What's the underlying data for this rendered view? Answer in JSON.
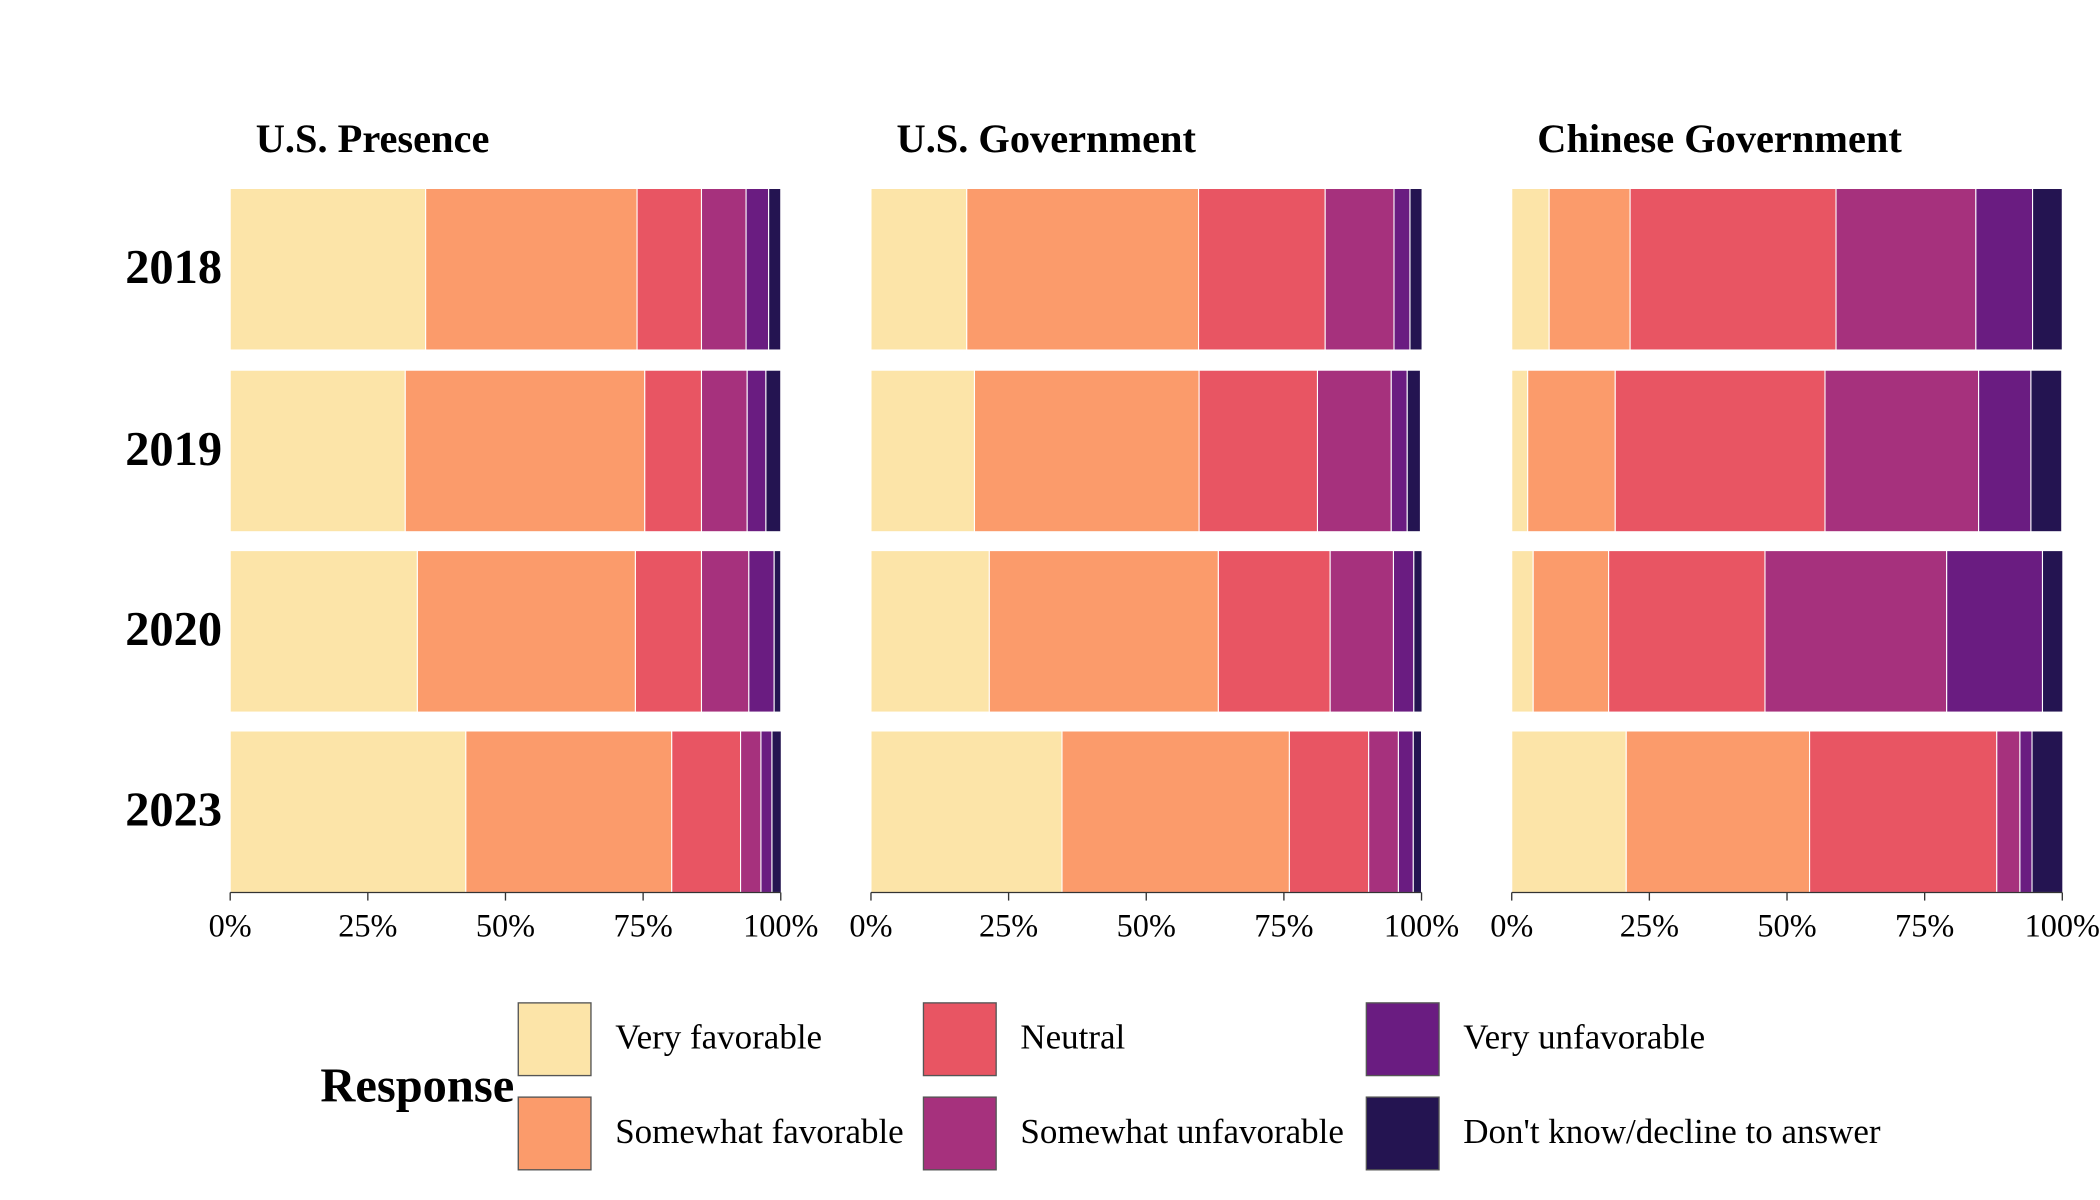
{
  "chart_data": [
    {
      "type": "bar",
      "orientation": "horizontal",
      "stacked": true,
      "title": "U.S. Presence",
      "categories": [
        "2018",
        "2019",
        "2020",
        "2023"
      ],
      "series": [
        {
          "name": "Very favorable",
          "color": "#fce4a8",
          "values": [
            35.5,
            31.8,
            34.0,
            42.8
          ]
        },
        {
          "name": "Somewhat favorable",
          "color": "#fb9b6b",
          "values": [
            38.4,
            43.5,
            39.6,
            37.4
          ]
        },
        {
          "name": "Neutral",
          "color": "#e85563",
          "values": [
            11.7,
            10.3,
            12.0,
            12.5
          ]
        },
        {
          "name": "Somewhat unfavorable",
          "color": "#a6317d",
          "values": [
            8.1,
            8.3,
            8.6,
            3.7
          ]
        },
        {
          "name": "Very unfavorable",
          "color": "#6a1c81",
          "values": [
            4.1,
            3.4,
            4.6,
            2.0
          ]
        },
        {
          "name": "Don't know/decline to answer",
          "color": "#241451",
          "values": [
            2.2,
            2.7,
            1.2,
            1.7
          ]
        }
      ],
      "xlim": [
        0,
        100
      ],
      "xticks": [
        {
          "value": 0,
          "label": "0%"
        },
        {
          "value": 25,
          "label": "25%"
        },
        {
          "value": 50,
          "label": "50%"
        },
        {
          "value": 75,
          "label": "75%"
        },
        {
          "value": 100,
          "label": "100%"
        }
      ]
    },
    {
      "type": "bar",
      "orientation": "horizontal",
      "stacked": true,
      "title": "U.S. Government",
      "series": [
        {
          "name": "Very favorable",
          "color": "#fce4a8",
          "values": [
            17.4,
            18.8,
            21.5,
            34.7
          ]
        },
        {
          "name": "Somewhat favorable",
          "color": "#fb9b6b",
          "values": [
            42.1,
            40.8,
            41.6,
            41.3
          ]
        },
        {
          "name": "Neutral",
          "color": "#e85563",
          "values": [
            23.0,
            21.5,
            20.3,
            14.4
          ]
        },
        {
          "name": "Somewhat unfavorable",
          "color": "#a6317d",
          "values": [
            12.5,
            13.4,
            11.5,
            5.4
          ]
        },
        {
          "name": "Very unfavorable",
          "color": "#6a1c81",
          "values": [
            2.9,
            2.9,
            3.7,
            2.7
          ]
        },
        {
          "name": "Don't know/decline to answer",
          "color": "#241451",
          "values": [
            2.2,
            2.4,
            1.5,
            1.5
          ]
        }
      ],
      "xlim": [
        0,
        100
      ],
      "xticks": [
        {
          "value": 0,
          "label": "0%"
        },
        {
          "value": 25,
          "label": "25%"
        },
        {
          "value": 50,
          "label": "50%"
        },
        {
          "value": 75,
          "label": "75%"
        },
        {
          "value": 100,
          "label": "100%"
        }
      ]
    },
    {
      "type": "bar",
      "orientation": "horizontal",
      "stacked": true,
      "title": "Chinese Government",
      "series": [
        {
          "name": "Very favorable",
          "color": "#fce4a8",
          "values": [
            6.8,
            2.9,
            3.9,
            20.8
          ]
        },
        {
          "name": "Somewhat favorable",
          "color": "#fb9b6b",
          "values": [
            14.7,
            15.9,
            13.7,
            33.3
          ]
        },
        {
          "name": "Neutral",
          "color": "#e85563",
          "values": [
            37.4,
            38.1,
            28.4,
            34.0
          ]
        },
        {
          "name": "Somewhat unfavorable",
          "color": "#a6317d",
          "values": [
            25.4,
            27.9,
            33.0,
            4.2
          ]
        },
        {
          "name": "Very unfavorable",
          "color": "#6a1c81",
          "values": [
            10.3,
            9.5,
            17.4,
            2.2
          ]
        },
        {
          "name": "Don't know/decline to answer",
          "color": "#241451",
          "values": [
            5.4,
            5.6,
            3.7,
            5.6
          ]
        }
      ],
      "xlim": [
        0,
        100
      ],
      "xticks": [
        {
          "value": 0,
          "label": "0%"
        },
        {
          "value": 25,
          "label": "25%"
        },
        {
          "value": 50,
          "label": "50%"
        },
        {
          "value": 75,
          "label": "75%"
        },
        {
          "value": 100,
          "label": "100%"
        }
      ]
    }
  ],
  "legend": {
    "title": "Response"
  }
}
